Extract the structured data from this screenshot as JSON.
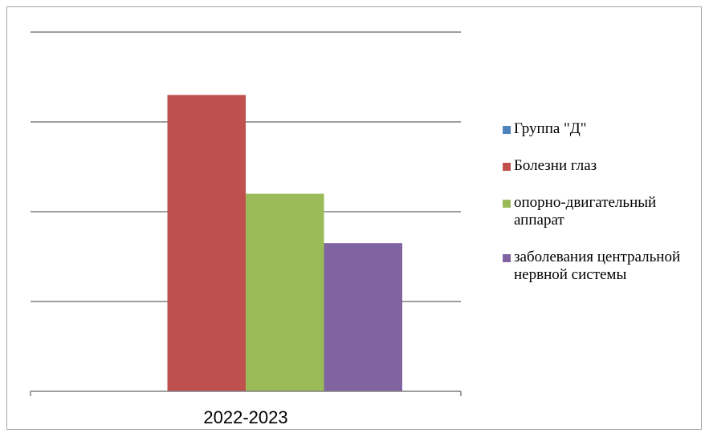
{
  "chart_data": {
    "type": "bar",
    "title": "",
    "xlabel": "",
    "ylabel": "",
    "categories": [
      "2022-2023"
    ],
    "ylim": [
      0,
      4
    ],
    "grid": true,
    "legend_position": "right",
    "series": [
      {
        "name": "Группа \"Д\"",
        "values": [
          0
        ],
        "color": "#4f81bd"
      },
      {
        "name": "Болезни глаз",
        "values": [
          3.3
        ],
        "color": "#c0504d"
      },
      {
        "name": "опорно-двигательный аппарат",
        "values": [
          2.2
        ],
        "color": "#9bbb59"
      },
      {
        "name": "заболевания центральной нервной системы",
        "values": [
          1.65
        ],
        "color": "#8064a2"
      }
    ]
  }
}
